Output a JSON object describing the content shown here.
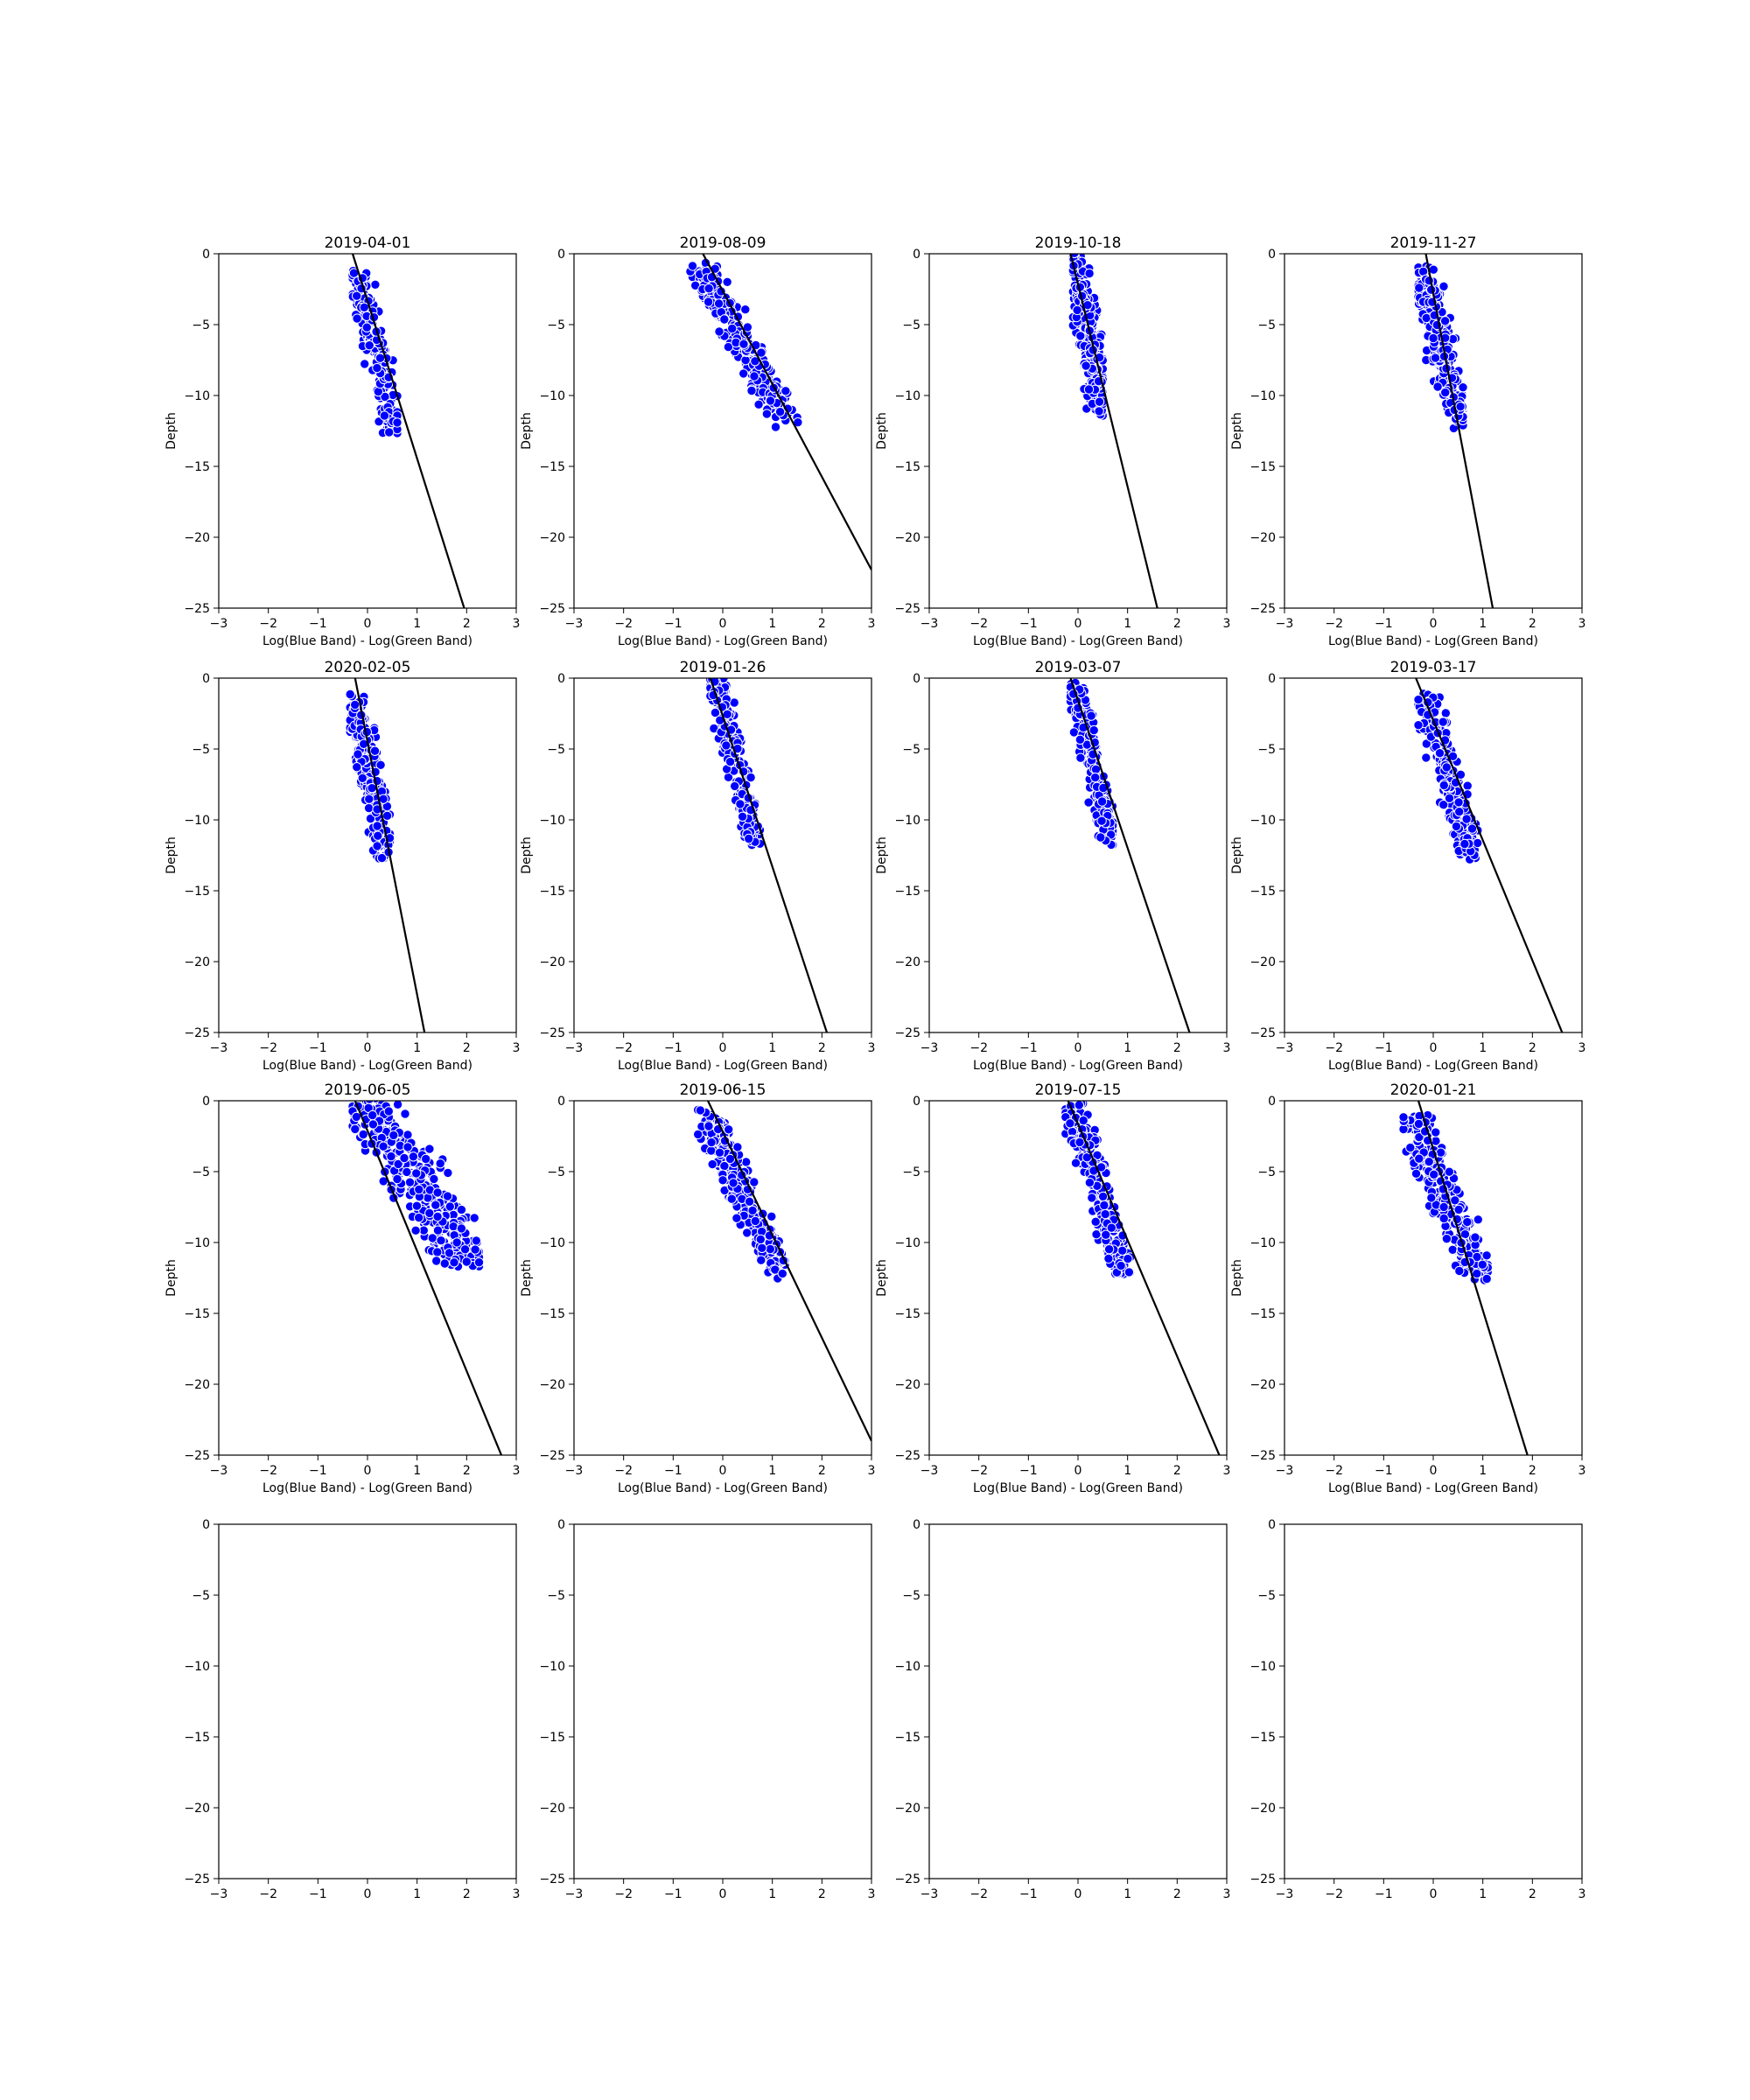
{
  "chart_data": {
    "type": "scatter",
    "layout": {
      "rows": 4,
      "cols": 4
    },
    "xlim": [
      -3,
      3
    ],
    "ylim": [
      -25,
      0
    ],
    "xticks": [
      -3,
      -2,
      -1,
      0,
      1,
      2,
      3
    ],
    "yticks": [
      0,
      -5,
      -10,
      -15,
      -20,
      -25
    ],
    "xtick_labels": [
      "−3",
      "−2",
      "−1",
      "0",
      "1",
      "2",
      "3"
    ],
    "ytick_labels": [
      "0",
      "−5",
      "−10",
      "−15",
      "−20",
      "−25"
    ],
    "grid": false,
    "point_color": "#0000ff",
    "point_edge_color": "#ffffff",
    "line_color": "#000000",
    "panels": [
      {
        "title": "2019-04-01",
        "xlabel": "Log(Blue Band) - Log(Green Band)",
        "ylabel": "Depth",
        "scatter": {
          "x_range": [
            -0.3,
            0.6
          ],
          "depth_range": [
            -1.0,
            -12.5
          ],
          "slope": -11.0,
          "spread": 0.11,
          "count": 220,
          "seed": 11
        },
        "fit_line": {
          "x0": -0.3,
          "x1": 1.95,
          "y0": 0,
          "y1": -25
        }
      },
      {
        "title": "2019-08-09",
        "xlabel": "Log(Blue Band) - Log(Green Band)",
        "ylabel": "Depth",
        "scatter": {
          "x_range": [
            -0.7,
            1.55
          ],
          "depth_range": [
            -1.0,
            -12.0
          ],
          "slope": -5.3,
          "spread": 0.15,
          "count": 320,
          "seed": 23
        },
        "fit_line": {
          "x0": -0.4,
          "x1": 3.0,
          "y0": 0,
          "y1": -22.3
        }
      },
      {
        "title": "2019-10-18",
        "xlabel": "Log(Blue Band) - Log(Green Band)",
        "ylabel": "Depth",
        "scatter": {
          "x_range": [
            -0.1,
            0.5
          ],
          "depth_range": [
            0.0,
            -11.2
          ],
          "slope": -14.0,
          "spread": 0.12,
          "count": 260,
          "seed": 37
        },
        "fit_line": {
          "x0": -0.15,
          "x1": 1.6,
          "y0": 0,
          "y1": -25
        }
      },
      {
        "title": "2019-11-27",
        "xlabel": "Log(Blue Band) - Log(Green Band)",
        "ylabel": "Depth",
        "scatter": {
          "x_range": [
            -0.3,
            0.6
          ],
          "depth_range": [
            -1.0,
            -12.0
          ],
          "slope": -18.0,
          "spread": 0.13,
          "count": 280,
          "seed": 41
        },
        "fit_line": {
          "x0": -0.15,
          "x1": 1.2,
          "y0": 0,
          "y1": -25
        }
      },
      {
        "title": "2020-02-05",
        "xlabel": "Log(Blue Band) - Log(Green Band)",
        "ylabel": "Depth",
        "scatter": {
          "x_range": [
            -0.35,
            0.45
          ],
          "depth_range": [
            -1.2,
            -12.5
          ],
          "slope": -19.0,
          "spread": 0.12,
          "count": 260,
          "seed": 53
        },
        "fit_line": {
          "x0": -0.25,
          "x1": 1.15,
          "y0": 0,
          "y1": -25
        }
      },
      {
        "title": "2019-01-26",
        "xlabel": "Log(Blue Band) - Log(Green Band)",
        "ylabel": "Depth",
        "scatter": {
          "x_range": [
            -0.25,
            0.75
          ],
          "depth_range": [
            0.0,
            -11.5
          ],
          "slope": -10.5,
          "spread": 0.1,
          "count": 230,
          "seed": 67
        },
        "fit_line": {
          "x0": -0.25,
          "x1": 2.1,
          "y0": 0,
          "y1": -25
        }
      },
      {
        "title": "2019-03-07",
        "xlabel": "Log(Blue Band) - Log(Green Band)",
        "ylabel": "Depth",
        "scatter": {
          "x_range": [
            -0.15,
            0.7
          ],
          "depth_range": [
            -0.5,
            -11.5
          ],
          "slope": -10.5,
          "spread": 0.1,
          "count": 220,
          "seed": 71
        },
        "fit_line": {
          "x0": -0.15,
          "x1": 2.25,
          "y0": 0,
          "y1": -25
        }
      },
      {
        "title": "2019-03-17",
        "xlabel": "Log(Blue Band) - Log(Green Band)",
        "ylabel": "Depth",
        "scatter": {
          "x_range": [
            -0.3,
            0.9
          ],
          "depth_range": [
            -1.2,
            -12.5
          ],
          "slope": -8.5,
          "spread": 0.13,
          "count": 240,
          "seed": 83
        },
        "fit_line": {
          "x0": -0.35,
          "x1": 2.6,
          "y0": 0,
          "y1": -25
        }
      },
      {
        "title": "2019-06-05",
        "xlabel": "Log(Blue Band) - Log(Green Band)",
        "ylabel": "Depth",
        "scatter": {
          "x_range": [
            -0.3,
            2.25
          ],
          "depth_range": [
            0.0,
            -11.5
          ],
          "slope": -8.0,
          "spread": 0.3,
          "count": 330,
          "seed": 97
        },
        "fit_line": {
          "x0": -0.25,
          "x1": 2.7,
          "y0": 0,
          "y1": -25
        }
      },
      {
        "title": "2019-06-15",
        "xlabel": "Log(Blue Band) - Log(Green Band)",
        "ylabel": "Depth",
        "scatter": {
          "x_range": [
            -0.5,
            1.3
          ],
          "depth_range": [
            -0.8,
            -12.2
          ],
          "slope": -7.0,
          "spread": 0.15,
          "count": 320,
          "seed": 101
        },
        "fit_line": {
          "x0": -0.3,
          "x1": 3.0,
          "y0": 0,
          "y1": -24.0
        }
      },
      {
        "title": "2019-07-15",
        "xlabel": "Log(Blue Band) - Log(Green Band)",
        "ylabel": "Depth",
        "scatter": {
          "x_range": [
            -0.25,
            1.05
          ],
          "depth_range": [
            -0.5,
            -12.0
          ],
          "slope": -8.5,
          "spread": 0.13,
          "count": 260,
          "seed": 113
        },
        "fit_line": {
          "x0": -0.2,
          "x1": 2.85,
          "y0": 0,
          "y1": -25
        }
      },
      {
        "title": "2020-01-21",
        "xlabel": "Log(Blue Band) - Log(Green Band)",
        "ylabel": "Depth",
        "scatter": {
          "x_range": [
            -0.6,
            1.1
          ],
          "depth_range": [
            -1.2,
            -12.5
          ],
          "slope": -10.5,
          "spread": 0.17,
          "count": 300,
          "seed": 127
        },
        "fit_line": {
          "x0": -0.3,
          "x1": 1.9,
          "y0": 0,
          "y1": -25
        }
      },
      {
        "title": "",
        "xlabel": "",
        "ylabel": "",
        "scatter": null,
        "fit_line": null
      },
      {
        "title": "",
        "xlabel": "",
        "ylabel": "",
        "scatter": null,
        "fit_line": null
      },
      {
        "title": "",
        "xlabel": "",
        "ylabel": "",
        "scatter": null,
        "fit_line": null
      },
      {
        "title": "",
        "xlabel": "",
        "ylabel": "",
        "scatter": null,
        "fit_line": null
      }
    ]
  }
}
